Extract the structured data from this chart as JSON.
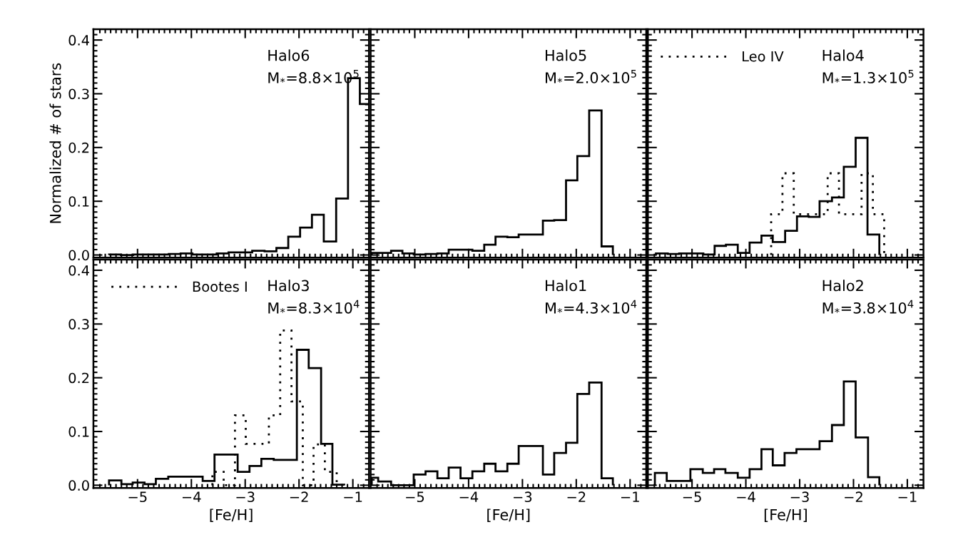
{
  "chart_data": [
    {
      "type": "histogram",
      "xlim": [
        -5.82,
        -0.7
      ],
      "ylim": [
        -0.005,
        0.42
      ],
      "ylabel": "Normalized # of stars",
      "tick_labels": "y",
      "xticks": [
        -5,
        -4,
        -3,
        -2,
        -1
      ],
      "yticks": [
        {
          "value": 0,
          "label": "0.0"
        },
        {
          "value": 0.1,
          "label": "0.1"
        },
        {
          "value": 0.2,
          "label": "0.2"
        },
        {
          "value": 0.3,
          "label": "0.3"
        },
        {
          "value": 0.4,
          "label": "0.4"
        }
      ],
      "annotations": [
        "Halo6",
        "M$_{*}$=8.8×10$^{5}$"
      ],
      "bins": [
        -5.53,
        -5.31,
        -5.08,
        -4.86,
        -4.64,
        -4.42,
        -4.2,
        -3.98,
        -3.75,
        -3.53,
        -3.31,
        -3.09,
        -2.87,
        -2.64,
        -2.42,
        -2.2,
        -1.98,
        -1.76,
        -1.54,
        -1.31,
        -1.09,
        -0.87,
        -0.65
      ],
      "series": [
        {
          "color": "#000000",
          "line_style": "solid",
          "values": [
            0.001,
            0.0,
            0.001,
            0.001,
            0.001,
            0.002,
            0.003,
            0.001,
            0.001,
            0.003,
            0.005,
            0.005,
            0.008,
            0.007,
            0.013,
            0.034,
            0.051,
            0.075,
            0.025,
            0.105,
            0.329,
            0.281
          ]
        }
      ]
    },
    {
      "type": "histogram",
      "xlim": [
        -5.82,
        -0.7
      ],
      "ylim": [
        -0.005,
        0.42
      ],
      "tick_labels": false,
      "xticks": [
        -5,
        -4,
        -3,
        -2,
        -1
      ],
      "yticks": [
        0,
        0.1,
        0.2,
        0.3,
        0.4
      ],
      "annotations": [
        "Halo5",
        "M$_{*}$=2.0×10$^{5}$"
      ],
      "bins": [
        -5.8,
        -5.68,
        -5.44,
        -5.23,
        -5.02,
        -4.8,
        -4.58,
        -4.37,
        -4.15,
        -3.93,
        -3.71,
        -3.5,
        -3.28,
        -3.07,
        -2.84,
        -2.62,
        -2.41,
        -2.19,
        -1.98,
        -1.76,
        -1.53,
        -1.32
      ],
      "series": [
        {
          "color": "#000000",
          "line_style": "solid",
          "values": [
            0.004,
            0.004,
            0.008,
            0.003,
            0.001,
            0.002,
            0.003,
            0.01,
            0.01,
            0.008,
            0.019,
            0.034,
            0.033,
            0.038,
            0.038,
            0.064,
            0.065,
            0.139,
            0.184,
            0.269,
            0.016
          ]
        }
      ]
    },
    {
      "type": "histogram",
      "xlim": [
        -5.82,
        -0.7
      ],
      "ylim": [
        -0.005,
        0.42
      ],
      "tick_labels": false,
      "legend": "top",
      "xticks": [
        -5,
        -4,
        -3,
        -2,
        -1
      ],
      "yticks": [
        0,
        0.1,
        0.2,
        0.3,
        0.4
      ],
      "annotations": [
        "Halo4",
        "M$_{*}$=1.3×10$^{5}$"
      ],
      "bins": [
        -5.67,
        -5.45,
        -5.24,
        -5.01,
        -4.79,
        -4.58,
        -4.37,
        -4.15,
        -3.93,
        -3.71,
        -3.5,
        -3.27,
        -3.05,
        -2.83,
        -2.63,
        -2.4,
        -2.18,
        -1.96,
        -1.74,
        -1.52
      ],
      "series": [
        {
          "color": "#000000",
          "line_style": "solid",
          "values": [
            0.003,
            0.002,
            0.003,
            0.003,
            0.001,
            0.017,
            0.019,
            0.004,
            0.023,
            0.036,
            0.024,
            0.045,
            0.072,
            0.071,
            0.1,
            0.107,
            0.164,
            0.218,
            0.038
          ]
        },
        {
          "name": "Leo IV",
          "color": "#000000",
          "line_style": "dotted",
          "bins": [
            -3.53,
            -3.32,
            -3.11,
            -2.9,
            -2.69,
            -2.48,
            -2.27,
            -2.06,
            -1.85,
            -1.64,
            -1.43
          ],
          "values": [
            0.076,
            0.152,
            0.076,
            0.076,
            0.076,
            0.152,
            0.076,
            0.076,
            0.152,
            0.076
          ]
        }
      ]
    },
    {
      "type": "histogram",
      "xlim": [
        -5.82,
        -0.7
      ],
      "ylim": [
        -0.005,
        0.42
      ],
      "xlabel": "[Fe/H]",
      "legend": "top left",
      "xticks": [
        {
          "value": -5,
          "label": "−5"
        },
        {
          "value": -4,
          "label": "−4"
        },
        {
          "value": -3,
          "label": "−3"
        },
        {
          "value": -2,
          "label": "−2"
        },
        {
          "value": -1,
          "label": "−1"
        }
      ],
      "yticks": [
        {
          "value": 0,
          "label": "0.0"
        },
        {
          "value": 0.1,
          "label": "0.1"
        },
        {
          "value": 0.2,
          "label": "0.2"
        },
        {
          "value": 0.3,
          "label": "0.3"
        },
        {
          "value": 0.4,
          "label": "0.4"
        }
      ],
      "annotations": [
        "Halo3",
        "M$_{*}$=8.3×10$^{4}$"
      ],
      "bins": [
        -5.53,
        -5.3,
        -5.09,
        -4.87,
        -4.66,
        -4.43,
        -4.22,
        -4.0,
        -3.79,
        -3.57,
        -3.35,
        -3.14,
        -2.92,
        -2.7,
        -2.47,
        -2.25,
        -2.04,
        -1.82,
        -1.59,
        -1.38,
        -1.16
      ],
      "series": [
        {
          "color": "#000000",
          "line_style": "solid",
          "values": [
            0.009,
            0.002,
            0.005,
            0.002,
            0.012,
            0.016,
            0.016,
            0.016,
            0.008,
            0.057,
            0.057,
            0.025,
            0.036,
            0.049,
            0.047,
            0.047,
            0.252,
            0.218,
            0.077,
            0.001
          ]
        },
        {
          "name": "Bootes I",
          "color": "#000000",
          "line_style": "dotted",
          "bins": [
            -3.61,
            -3.4,
            -3.19,
            -2.99,
            -2.77,
            -2.56,
            -2.35,
            -2.14,
            -1.93,
            -1.73,
            -1.52,
            -1.3
          ],
          "values": [
            0.025,
            0.0,
            0.13,
            0.077,
            0.077,
            0.13,
            0.288,
            0.156,
            0.0,
            0.076,
            0.025
          ]
        }
      ]
    },
    {
      "type": "histogram",
      "xlim": [
        -5.82,
        -0.7
      ],
      "ylim": [
        -0.005,
        0.42
      ],
      "xlabel": "[Fe/H]",
      "tick_labels": "x",
      "xticks": [
        {
          "value": -5,
          "label": "−5"
        },
        {
          "value": -4,
          "label": "−4"
        },
        {
          "value": -3,
          "label": "−3"
        },
        {
          "value": -2,
          "label": "−2"
        },
        {
          "value": -1,
          "label": "−1"
        }
      ],
      "yticks": [
        0,
        0.1,
        0.2,
        0.3,
        0.4
      ],
      "annotations": [
        "Halo1",
        "M$_{*}$=4.3×10$^{4}$"
      ],
      "bins": [
        -5.8,
        -5.68,
        -5.44,
        -5.23,
        -5.02,
        -4.8,
        -4.58,
        -4.37,
        -4.15,
        -3.93,
        -3.71,
        -3.5,
        -3.28,
        -3.07,
        -2.84,
        -2.62,
        -2.41,
        -2.19,
        -1.98,
        -1.76,
        -1.53,
        -1.32
      ],
      "series": [
        {
          "color": "#000000",
          "line_style": "solid",
          "values": [
            0.014,
            0.007,
            0.0,
            0.0,
            0.02,
            0.026,
            0.013,
            0.033,
            0.013,
            0.026,
            0.04,
            0.026,
            0.04,
            0.073,
            0.073,
            0.02,
            0.06,
            0.079,
            0.17,
            0.191,
            0.013
          ]
        }
      ]
    },
    {
      "type": "histogram",
      "xlim": [
        -5.82,
        -0.7
      ],
      "ylim": [
        -0.005,
        0.42
      ],
      "xlabel": "[Fe/H]",
      "tick_labels": "x",
      "xticks": [
        {
          "value": -5,
          "label": "−5"
        },
        {
          "value": -4,
          "label": "−4"
        },
        {
          "value": -3,
          "label": "−3"
        },
        {
          "value": -2,
          "label": "−2"
        },
        {
          "value": -1,
          "label": "−1"
        }
      ],
      "yticks": [
        0,
        0.1,
        0.2,
        0.3,
        0.4
      ],
      "annotations": [
        "Halo2",
        "M$_{*}$=3.8×10$^{4}$"
      ],
      "bins": [
        -5.69,
        -5.47,
        -5.25,
        -5.03,
        -4.8,
        -4.59,
        -4.38,
        -4.15,
        -3.93,
        -3.71,
        -3.5,
        -3.28,
        -3.06,
        -2.85,
        -2.63,
        -2.4,
        -2.18,
        -1.96,
        -1.73,
        -1.52
      ],
      "series": [
        {
          "color": "#000000",
          "line_style": "solid",
          "values": [
            0.023,
            0.008,
            0.008,
            0.03,
            0.023,
            0.03,
            0.023,
            0.014,
            0.03,
            0.067,
            0.037,
            0.06,
            0.067,
            0.067,
            0.082,
            0.112,
            0.193,
            0.089,
            0.015
          ]
        }
      ]
    }
  ]
}
